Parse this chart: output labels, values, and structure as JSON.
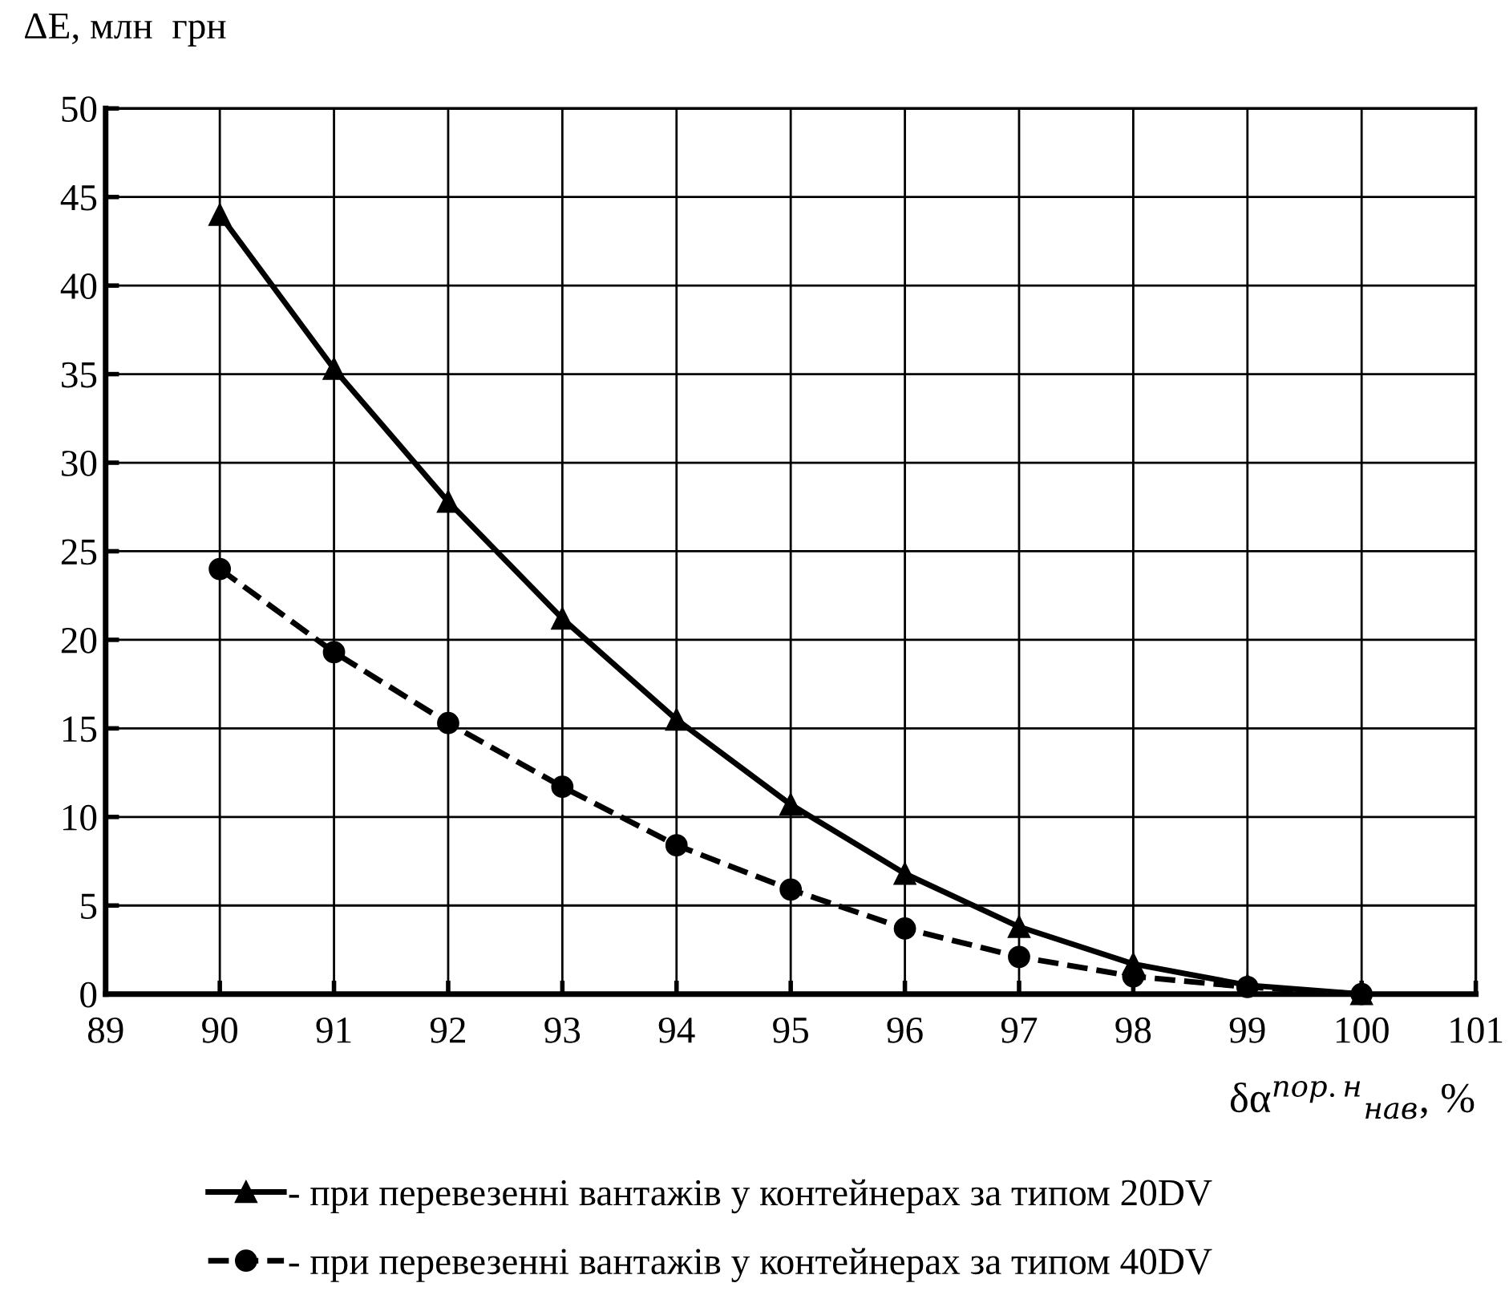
{
  "chart_data": {
    "type": "line",
    "ylabel": "ΔE, млн  грн",
    "xlabel": "δα$^{пор.н}$$_{нав}$, %",
    "x": [
      90,
      91,
      92,
      93,
      94,
      95,
      96,
      97,
      98,
      99,
      100
    ],
    "series": [
      {
        "name": "- при перевезенні вантажів у контейнерах за типом 20DV",
        "color": "#000000",
        "marker": "triangle",
        "line_style": "solid",
        "values": [
          44,
          35.3,
          27.8,
          21.2,
          15.5,
          10.7,
          6.8,
          3.8,
          1.7,
          0.5,
          0
        ]
      },
      {
        "name": "- при перевезенні вантажів у контейнерах за типом 40DV",
        "color": "#000000",
        "marker": "circle",
        "line_style": "dashed",
        "values": [
          24,
          19.3,
          15.3,
          11.7,
          8.4,
          5.9,
          3.7,
          2.1,
          1.0,
          0.4,
          0
        ]
      }
    ],
    "xlim": [
      89,
      101
    ],
    "xticks": [
      89,
      90,
      91,
      92,
      93,
      94,
      95,
      96,
      97,
      98,
      99,
      100,
      101
    ],
    "ylim": [
      0,
      50
    ],
    "yticks": [
      0,
      5,
      10,
      15,
      20,
      25,
      30,
      35,
      40,
      45,
      50
    ],
    "grid": true,
    "legend": "bottom"
  }
}
